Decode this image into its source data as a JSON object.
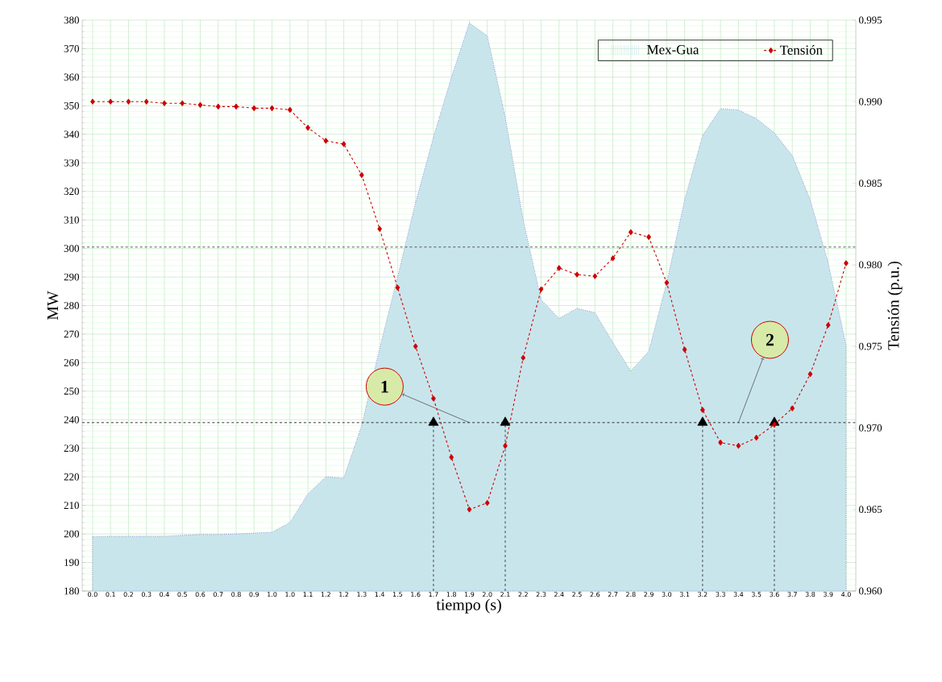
{
  "chart_data": {
    "type": "area",
    "xlabel": "tiempo (s)",
    "ylabel": "MW",
    "y2label": "Tensión (p.u.)",
    "categories": [
      "0.0",
      "0.1",
      "0.2",
      "0.3",
      "0.4",
      "0.5",
      "0.6",
      "0.7",
      "0.8",
      "0.9",
      "1.0",
      "1.0",
      "1.1",
      "1.2",
      "1.2",
      "1.3",
      "1.4",
      "1.5",
      "1.6",
      "1.7",
      "1.8",
      "1.9",
      "2.0",
      "2.1",
      "2.2",
      "2.3",
      "2.4",
      "2.5",
      "2.6",
      "2.7",
      "2.8",
      "2.9",
      "3.0",
      "3.1",
      "3.2",
      "3.3",
      "3.4",
      "3.5",
      "3.6",
      "3.7",
      "3.8",
      "3.9",
      "4.0"
    ],
    "series": [
      {
        "name": "Mex-Gua",
        "color": "#c9e5ec",
        "line_style": "dotted",
        "values": [
          199,
          199.2,
          199.2,
          199.2,
          199.2,
          199.5,
          199.8,
          199.8,
          200,
          200.3,
          200.6,
          204,
          214,
          220,
          219.5,
          238,
          265,
          290,
          316,
          339,
          360,
          379,
          374.5,
          346,
          310,
          282,
          275.5,
          279,
          277.5,
          267,
          257,
          264,
          288,
          317,
          339.5,
          349,
          348.5,
          345.5,
          340.5,
          332.5,
          317,
          295,
          266
        ]
      },
      {
        "name": "Tensión",
        "type": "line",
        "axis": "y2",
        "color": "#cc0000",
        "marker": "diamond",
        "line_style": "dashed",
        "values": [
          0.99,
          0.99,
          0.99,
          0.99,
          0.9899,
          0.9899,
          0.9898,
          0.9897,
          0.9897,
          0.9896,
          0.9896,
          0.9895,
          0.9884,
          0.9876,
          0.9874,
          0.9855,
          0.9822,
          0.9786,
          0.975,
          0.9718,
          0.9682,
          0.965,
          0.9654,
          0.9689,
          0.9743,
          0.9785,
          0.9798,
          0.9794,
          0.9793,
          0.9804,
          0.982,
          0.9817,
          0.9789,
          0.9748,
          0.9711,
          0.9691,
          0.9689,
          0.9694,
          0.9702,
          0.9712,
          0.9733,
          0.9763,
          0.9801
        ]
      },
      {
        "type": "lollipop",
        "color": "#000000",
        "marker": "triangle",
        "line_style": "dashed",
        "x": [
          "1.7",
          "2.1",
          "3.2",
          "3.6"
        ],
        "values": [
          239,
          239,
          239,
          239
        ]
      }
    ],
    "ylim": [
      180,
      380
    ],
    "yticks": [
      180,
      190,
      200,
      210,
      220,
      230,
      240,
      250,
      260,
      270,
      280,
      290,
      300,
      310,
      320,
      330,
      340,
      350,
      360,
      370,
      380
    ],
    "y2lim": [
      0.96,
      0.995
    ],
    "y2ticks": [
      {
        "value": 0.96,
        "label": "0.960"
      },
      {
        "value": 0.965,
        "label": "0.965"
      },
      {
        "value": 0.97,
        "label": "0.970"
      },
      {
        "value": 0.975,
        "label": "0.975"
      },
      {
        "value": 0.98,
        "label": "0.980"
      },
      {
        "value": 0.985,
        "label": "0.985"
      },
      {
        "value": 0.99,
        "label": "0.990"
      },
      {
        "value": 0.995,
        "label": "0.995"
      }
    ],
    "ref_lines": [
      {
        "axis": "y",
        "value": 300.5,
        "color": "#333333",
        "line_style": "dashed"
      },
      {
        "axis": "y",
        "value": 239,
        "color": "#000000",
        "line_style": "dashed"
      }
    ],
    "annotations": [
      {
        "text": "1",
        "x": "1.9",
        "y": 239
      },
      {
        "text": "2",
        "x": "3.4",
        "y": 239
      }
    ],
    "grid": true,
    "legend": "top right"
  }
}
